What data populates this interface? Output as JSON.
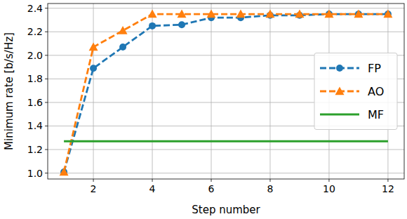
{
  "chart_data": {
    "type": "line",
    "x_label": "Step number",
    "y_label": "Minimum rate [b/s/Hz]",
    "x": [
      1,
      2,
      3,
      4,
      5,
      6,
      7,
      8,
      9,
      10,
      11,
      12
    ],
    "series": [
      {
        "name": "FP",
        "color": "#1f77b4",
        "marker": "circle",
        "line_style": "dashed",
        "values": [
          1.01,
          1.89,
          2.07,
          2.25,
          2.26,
          2.32,
          2.32,
          2.34,
          2.34,
          2.35,
          2.35,
          2.35
        ]
      },
      {
        "name": "AO",
        "color": "#ff7f0e",
        "marker": "triangle",
        "line_style": "dashed",
        "values": [
          1.01,
          2.07,
          2.21,
          2.35,
          2.35,
          2.35,
          2.35,
          2.35,
          2.35,
          2.35,
          2.35,
          2.35
        ]
      },
      {
        "name": "MF",
        "color": "#2ca02c",
        "marker": "none",
        "line_style": "solid",
        "values": [
          1.27,
          1.27,
          1.27,
          1.27,
          1.27,
          1.27,
          1.27,
          1.27,
          1.27,
          1.27,
          1.27,
          1.27
        ]
      }
    ],
    "xlim": [
      0.45,
      12.55
    ],
    "ylim": [
      0.95,
      2.44
    ],
    "xticks": [
      2,
      4,
      6,
      8,
      10,
      12
    ],
    "yticks": [
      {
        "value": 1.0,
        "label": "1.0"
      },
      {
        "value": 1.2,
        "label": "1.2"
      },
      {
        "value": 1.4,
        "label": "1.4"
      },
      {
        "value": 1.6,
        "label": "1.6"
      },
      {
        "value": 1.8,
        "label": "1.8"
      },
      {
        "value": 2.0,
        "label": "2.0"
      },
      {
        "value": 2.2,
        "label": "2.2"
      },
      {
        "value": 2.4,
        "label": "2.4"
      }
    ],
    "grid": true,
    "legend": "center right"
  }
}
